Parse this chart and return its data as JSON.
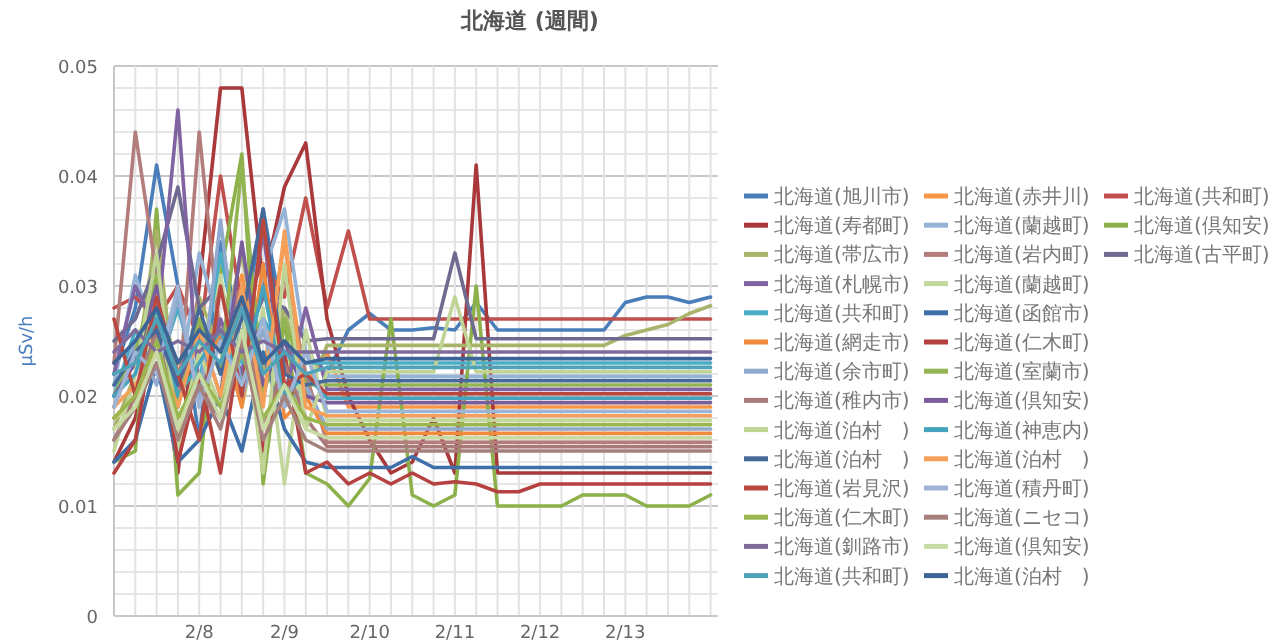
{
  "chart_data": {
    "type": "line",
    "title": "北海道 (週間)",
    "ylabel": "µSv/h",
    "grid": true,
    "legend": "right",
    "categories": [
      null,
      null,
      null,
      null,
      "2/8",
      null,
      null,
      null,
      "2/9",
      null,
      null,
      null,
      "2/10",
      null,
      null,
      null,
      "2/11",
      null,
      null,
      null,
      "2/12",
      null,
      null,
      null,
      "2/13",
      null,
      null,
      null,
      null
    ],
    "ylim": [
      0,
      0.05
    ],
    "yticks": [
      0,
      {
        "value": 0.002,
        "label": null
      },
      {
        "value": 0.004,
        "label": null
      },
      {
        "value": 0.006,
        "label": null
      },
      {
        "value": 0.008,
        "label": null
      },
      0.01,
      {
        "value": 0.012,
        "label": null
      },
      {
        "value": 0.014,
        "label": null
      },
      {
        "value": 0.016,
        "label": null
      },
      {
        "value": 0.018,
        "label": null
      },
      0.02,
      {
        "value": 0.022,
        "label": null
      },
      {
        "value": 0.024,
        "label": null
      },
      {
        "value": 0.026,
        "label": null
      },
      {
        "value": 0.028,
        "label": null
      },
      0.03,
      {
        "value": 0.032,
        "label": null
      },
      {
        "value": 0.034,
        "label": null
      },
      {
        "value": 0.036,
        "label": null
      },
      {
        "value": 0.038,
        "label": null
      },
      0.04,
      {
        "value": 0.042,
        "label": null
      },
      {
        "value": 0.044,
        "label": null
      },
      {
        "value": 0.046,
        "label": null
      },
      {
        "value": 0.048,
        "label": null
      },
      0.05
    ],
    "series": [
      {
        "name": "北海道(旭川市)",
        "color": "#4a7ebb",
        "values": [
          0.022,
          0.028,
          0.041,
          0.03,
          0.016,
          0.034,
          0.025,
          0.037,
          0.026,
          0.024,
          0.022,
          0.026,
          0.0275,
          0.026,
          0.026,
          0.0262,
          0.026,
          0.0285,
          0.026,
          0.026,
          0.026,
          0.026,
          0.026,
          0.026,
          0.0285,
          0.029,
          0.029,
          0.0285,
          0.029
        ]
      },
      {
        "name": "北海道(赤井川)",
        "color": "#f79646",
        "values": [
          0.019,
          0.024,
          0.03,
          0.022,
          0.027,
          0.025,
          0.031,
          0.022,
          0.034,
          0.021,
          0.024,
          0.019,
          0.019,
          0.019,
          0.019,
          0.019,
          0.019,
          0.019,
          0.019,
          0.019,
          0.019,
          0.019,
          0.019,
          0.019,
          0.019,
          0.019,
          0.019,
          0.019,
          0.019
        ]
      },
      {
        "name": "北海道(共和町)",
        "color": "#c0504d",
        "values": [
          0.028,
          0.029,
          0.027,
          0.03,
          0.025,
          0.04,
          0.028,
          0.032,
          0.029,
          0.038,
          0.028,
          0.035,
          0.027,
          0.027,
          0.027,
          0.027,
          0.027,
          0.027,
          0.027,
          0.027,
          0.027,
          0.027,
          0.027,
          0.027,
          0.027,
          0.027,
          0.027,
          0.027,
          0.027
        ]
      },
      {
        "name": "北海道(寿都町)",
        "color": "#a8383a",
        "values": [
          0.014,
          0.018,
          0.026,
          0.013,
          0.03,
          0.048,
          0.048,
          0.03,
          0.039,
          0.043,
          0.027,
          0.02,
          0.016,
          0.013,
          0.014,
          0.018,
          0.013,
          0.041,
          0.013,
          0.013,
          0.013,
          0.013,
          0.013,
          0.013,
          0.013,
          0.013,
          0.013,
          0.013,
          0.013
        ]
      },
      {
        "name": "北海道(蘭越町)",
        "color": "#95b3d7",
        "values": [
          0.021,
          0.031,
          0.025,
          0.02,
          0.033,
          0.026,
          0.021,
          0.031,
          0.037,
          0.024,
          0.0218,
          0.0218,
          0.0218,
          0.0218,
          0.0218,
          0.0218,
          0.0218,
          0.0218,
          0.0218,
          0.0218,
          0.0218,
          0.0218,
          0.0218,
          0.0218,
          0.0218,
          0.0218,
          0.0218,
          0.0218,
          0.0218
        ]
      },
      {
        "name": "北海道(倶知安)",
        "color": "#8cb04a",
        "values": [
          0.014,
          0.015,
          0.037,
          0.011,
          0.013,
          0.031,
          0.042,
          0.012,
          0.027,
          0.013,
          0.012,
          0.01,
          0.0125,
          0.027,
          0.011,
          0.01,
          0.011,
          0.03,
          0.01,
          0.01,
          0.01,
          0.01,
          0.011,
          0.011,
          0.011,
          0.01,
          0.01,
          0.01,
          0.011
        ]
      },
      {
        "name": "北海道(帯広市)",
        "color": "#a9b46b",
        "values": [
          0.017,
          0.022,
          0.035,
          0.019,
          0.029,
          0.024,
          0.033,
          0.022,
          0.028,
          0.02,
          0.0246,
          0.0246,
          0.0246,
          0.0246,
          0.0246,
          0.0246,
          0.0246,
          0.0246,
          0.0246,
          0.0246,
          0.0246,
          0.0246,
          0.0246,
          0.0246,
          0.0255,
          0.026,
          0.0265,
          0.0275,
          0.0282
        ]
      },
      {
        "name": "北海道(岩内町)",
        "color": "#b27d7b",
        "values": [
          0.023,
          0.044,
          0.031,
          0.019,
          0.044,
          0.025,
          0.03,
          0.02,
          0.031,
          0.022,
          0.0158,
          0.0158,
          0.0158,
          0.0158,
          0.0158,
          0.0158,
          0.0158,
          0.0158,
          0.0158,
          0.0158,
          0.0158,
          0.0158,
          0.0158,
          0.0158,
          0.0158,
          0.0158,
          0.0158,
          0.0158,
          0.0158
        ]
      },
      {
        "name": "北海道(古平町)",
        "color": "#6f6a8f",
        "values": [
          0.025,
          0.027,
          0.032,
          0.039,
          0.028,
          0.03,
          0.024,
          0.029,
          0.028,
          0.025,
          0.0252,
          0.0252,
          0.0252,
          0.0252,
          0.0252,
          0.0252,
          0.033,
          0.0252,
          0.0252,
          0.0252,
          0.0252,
          0.0252,
          0.0252,
          0.0252,
          0.0252,
          0.0252,
          0.0252,
          0.0252,
          0.0252
        ]
      },
      {
        "name": "北海道(札幌市)",
        "color": "#8064a2",
        "values": [
          0.022,
          0.03,
          0.026,
          0.046,
          0.02,
          0.027,
          0.022,
          0.035,
          0.02,
          0.028,
          0.0206,
          0.0206,
          0.0206,
          0.0206,
          0.0206,
          0.0206,
          0.0206,
          0.0206,
          0.0206,
          0.0206,
          0.0206,
          0.0206,
          0.0206,
          0.0206,
          0.0206,
          0.0206,
          0.0206,
          0.0206,
          0.0206
        ]
      },
      {
        "name": "北海道(蘭越町)",
        "color": "#c3d69b",
        "values": [
          0.018,
          0.019,
          0.028,
          0.015,
          0.024,
          0.031,
          0.019,
          0.028,
          0.012,
          0.026,
          0.0178,
          0.0178,
          0.0178,
          0.0178,
          0.0178,
          0.0178,
          0.0178,
          0.0178,
          0.0178,
          0.0178,
          0.0178,
          0.0178,
          0.0178,
          0.0178,
          0.0178,
          0.0178,
          0.0178,
          0.0178,
          0.0178
        ]
      },
      {
        "name": "北海道(共和町)",
        "color": "#4bacc6",
        "values": [
          0.02,
          0.026,
          0.022,
          0.028,
          0.021,
          0.033,
          0.023,
          0.027,
          0.024,
          0.023,
          0.023,
          0.023,
          0.023,
          0.023,
          0.023,
          0.023,
          0.023,
          0.023,
          0.023,
          0.023,
          0.023,
          0.023,
          0.023,
          0.023,
          0.023,
          0.023,
          0.023,
          0.023,
          0.023
        ]
      },
      {
        "name": "北海道(函館市)",
        "color": "#3f6fa8",
        "values": [
          0.014,
          0.016,
          0.023,
          0.014,
          0.016,
          0.02,
          0.015,
          0.024,
          0.017,
          0.014,
          0.0135,
          0.0135,
          0.0135,
          0.0135,
          0.0145,
          0.0135,
          0.0135,
          0.0135,
          0.0135,
          0.0135,
          0.0135,
          0.0135,
          0.0135,
          0.0135,
          0.0135,
          0.0135,
          0.0135,
          0.0135,
          0.0135
        ]
      },
      {
        "name": "北海道(網走市)",
        "color": "#f08a3c",
        "values": [
          0.018,
          0.02,
          0.024,
          0.018,
          0.021,
          0.026,
          0.019,
          0.032,
          0.018,
          0.02,
          0.0166,
          0.0166,
          0.0166,
          0.0166,
          0.0166,
          0.0166,
          0.0166,
          0.0166,
          0.0166,
          0.0166,
          0.0166,
          0.0166,
          0.0166,
          0.0166,
          0.0166,
          0.0166,
          0.0166,
          0.0166,
          0.0166
        ]
      },
      {
        "name": "北海道(仁木町)",
        "color": "#b54240",
        "values": [
          0.013,
          0.016,
          0.027,
          0.014,
          0.022,
          0.013,
          0.026,
          0.015,
          0.024,
          0.013,
          0.014,
          0.012,
          0.013,
          0.012,
          0.013,
          0.012,
          0.0122,
          0.012,
          0.0113,
          0.0113,
          0.012,
          0.012,
          0.012,
          0.012,
          0.012,
          0.012,
          0.012,
          0.012,
          0.012
        ]
      },
      {
        "name": "北海道(余市町)",
        "color": "#8fa9cf",
        "values": [
          0.019,
          0.025,
          0.021,
          0.029,
          0.019,
          0.036,
          0.02,
          0.026,
          0.019,
          0.021,
          0.017,
          0.017,
          0.017,
          0.017,
          0.017,
          0.017,
          0.017,
          0.017,
          0.017,
          0.017,
          0.017,
          0.017,
          0.017,
          0.017,
          0.017,
          0.017,
          0.017,
          0.017,
          0.017
        ]
      },
      {
        "name": "北海道(室蘭市)",
        "color": "#93b452",
        "values": [
          0.02,
          0.024,
          0.031,
          0.019,
          0.027,
          0.022,
          0.041,
          0.02,
          0.027,
          0.021,
          0.021,
          0.021,
          0.021,
          0.021,
          0.021,
          0.021,
          0.021,
          0.021,
          0.021,
          0.021,
          0.021,
          0.021,
          0.021,
          0.021,
          0.021,
          0.021,
          0.021,
          0.021,
          0.021
        ]
      },
      {
        "name": "北海道(稚内市)",
        "color": "#a87a7a",
        "values": [
          0.016,
          0.02,
          0.026,
          0.017,
          0.021,
          0.018,
          0.029,
          0.017,
          0.023,
          0.018,
          0.0154,
          0.0154,
          0.0154,
          0.0154,
          0.0154,
          0.0154,
          0.0154,
          0.0154,
          0.0154,
          0.0154,
          0.0154,
          0.0154,
          0.0154,
          0.0154,
          0.0154,
          0.0154,
          0.0154,
          0.0154,
          0.0154
        ]
      },
      {
        "name": "北海道(倶知安)",
        "color": "#7a5e9c",
        "values": [
          0.02,
          0.023,
          0.03,
          0.021,
          0.026,
          0.02,
          0.034,
          0.021,
          0.025,
          0.02,
          0.0194,
          0.0194,
          0.0194,
          0.0194,
          0.0194,
          0.0194,
          0.0194,
          0.0194,
          0.0194,
          0.0194,
          0.0194,
          0.0194,
          0.0194,
          0.0194,
          0.0194,
          0.0194,
          0.0194,
          0.0194,
          0.0194
        ]
      },
      {
        "name": "北海道(泊村　)",
        "color": "#bfd495",
        "values": [
          0.015,
          0.022,
          0.033,
          0.016,
          0.024,
          0.019,
          0.028,
          0.013,
          0.032,
          0.017,
          0.0222,
          0.0222,
          0.0222,
          0.0222,
          0.0222,
          0.0222,
          0.029,
          0.0222,
          0.0222,
          0.0222,
          0.0222,
          0.0222,
          0.0222,
          0.0222,
          0.0222,
          0.0222,
          0.0222,
          0.0222,
          0.0222
        ]
      },
      {
        "name": "北海道(神恵内)",
        "color": "#45a3bd",
        "values": [
          0.02,
          0.022,
          0.028,
          0.02,
          0.023,
          0.026,
          0.021,
          0.03,
          0.02,
          0.022,
          0.0198,
          0.0198,
          0.0198,
          0.0198,
          0.0198,
          0.0198,
          0.0198,
          0.0198,
          0.0198,
          0.0198,
          0.0198,
          0.0198,
          0.0198,
          0.0198,
          0.0198,
          0.0198,
          0.0198,
          0.0198,
          0.0198
        ]
      },
      {
        "name": "北海道(泊村　)",
        "color": "#46699a",
        "values": [
          0.021,
          0.024,
          0.026,
          0.021,
          0.028,
          0.022,
          0.027,
          0.037,
          0.022,
          0.021,
          0.0214,
          0.0214,
          0.0214,
          0.0214,
          0.0214,
          0.0214,
          0.0214,
          0.0214,
          0.0214,
          0.0214,
          0.0214,
          0.0214,
          0.0214,
          0.0214,
          0.0214,
          0.0214,
          0.0214,
          0.0214,
          0.0214
        ]
      },
      {
        "name": "北海道(泊村　)",
        "color": "#f5a05a",
        "values": [
          0.019,
          0.021,
          0.024,
          0.019,
          0.026,
          0.02,
          0.03,
          0.019,
          0.035,
          0.019,
          0.0182,
          0.0182,
          0.0182,
          0.0182,
          0.0182,
          0.0182,
          0.0182,
          0.0182,
          0.0182,
          0.0182,
          0.0182,
          0.0182,
          0.0182,
          0.0182,
          0.0182,
          0.0182,
          0.0182,
          0.0182,
          0.0182
        ]
      },
      {
        "name": "北海道(岩見沢)",
        "color": "#b8473f",
        "values": [
          0.027,
          0.02,
          0.029,
          0.022,
          0.016,
          0.03,
          0.02,
          0.036,
          0.021,
          0.022,
          0.0202,
          0.0202,
          0.0202,
          0.0202,
          0.0202,
          0.0202,
          0.0202,
          0.0202,
          0.0202,
          0.0202,
          0.0202,
          0.0202,
          0.0202,
          0.0202,
          0.0202,
          0.0202,
          0.0202,
          0.0202,
          0.0202
        ]
      },
      {
        "name": "北海道(積丹町)",
        "color": "#9db4d6",
        "values": [
          0.019,
          0.024,
          0.022,
          0.03,
          0.019,
          0.025,
          0.021,
          0.027,
          0.019,
          0.024,
          0.0186,
          0.0186,
          0.0186,
          0.0186,
          0.0186,
          0.0186,
          0.0186,
          0.0186,
          0.0186,
          0.0186,
          0.0186,
          0.0186,
          0.0186,
          0.0186,
          0.0186,
          0.0186,
          0.0186,
          0.0186,
          0.0186
        ]
      },
      {
        "name": "北海道(仁木町)",
        "color": "#9ab64f",
        "values": [
          0.018,
          0.02,
          0.025,
          0.018,
          0.022,
          0.019,
          0.024,
          0.018,
          0.021,
          0.018,
          0.0174,
          0.0174,
          0.0174,
          0.0174,
          0.0174,
          0.0174,
          0.0174,
          0.0174,
          0.0174,
          0.0174,
          0.0174,
          0.0174,
          0.0174,
          0.0174,
          0.0174,
          0.0174,
          0.0174,
          0.0174,
          0.0174
        ]
      },
      {
        "name": "北海道(ニセコ)",
        "color": "#a6807c",
        "values": [
          0.016,
          0.019,
          0.023,
          0.016,
          0.021,
          0.017,
          0.025,
          0.016,
          0.02,
          0.016,
          0.015,
          0.015,
          0.015,
          0.015,
          0.015,
          0.015,
          0.015,
          0.015,
          0.015,
          0.015,
          0.015,
          0.015,
          0.015,
          0.015,
          0.015,
          0.015,
          0.015,
          0.015,
          0.015
        ]
      },
      {
        "name": "北海道(釧路市)",
        "color": "#7f6b9c",
        "values": [
          0.024,
          0.026,
          0.024,
          0.025,
          0.024,
          0.026,
          0.024,
          0.025,
          0.024,
          0.024,
          0.024,
          0.024,
          0.024,
          0.024,
          0.024,
          0.024,
          0.024,
          0.024,
          0.024,
          0.024,
          0.024,
          0.024,
          0.024,
          0.024,
          0.024,
          0.024,
          0.024,
          0.024,
          0.024
        ]
      },
      {
        "name": "北海道(倶知安)",
        "color": "#c9dba5",
        "values": [
          0.017,
          0.019,
          0.024,
          0.017,
          0.022,
          0.018,
          0.026,
          0.017,
          0.021,
          0.017,
          0.0162,
          0.0162,
          0.0162,
          0.0162,
          0.0162,
          0.0162,
          0.0162,
          0.0162,
          0.0162,
          0.0162,
          0.0162,
          0.0162,
          0.0162,
          0.0162,
          0.0162,
          0.0162,
          0.0162,
          0.0162,
          0.0162
        ]
      },
      {
        "name": "北海道(共和町)",
        "color": "#4fa3b8",
        "values": [
          0.022,
          0.023,
          0.027,
          0.022,
          0.025,
          0.023,
          0.028,
          0.022,
          0.024,
          0.022,
          0.0226,
          0.0226,
          0.0226,
          0.0226,
          0.0226,
          0.0226,
          0.0226,
          0.0226,
          0.0226,
          0.0226,
          0.0226,
          0.0226,
          0.0226,
          0.0226,
          0.0226,
          0.0226,
          0.0226,
          0.0226,
          0.0226
        ]
      },
      {
        "name": "北海道(泊村　)",
        "color": "#3d6496",
        "values": [
          0.023,
          0.025,
          0.028,
          0.023,
          0.026,
          0.024,
          0.029,
          0.023,
          0.025,
          0.023,
          0.0234,
          0.0234,
          0.0234,
          0.0234,
          0.0234,
          0.0234,
          0.0234,
          0.0234,
          0.0234,
          0.0234,
          0.0234,
          0.0234,
          0.0234,
          0.0234,
          0.0234,
          0.0234,
          0.0234,
          0.0234,
          0.0234
        ]
      }
    ]
  }
}
